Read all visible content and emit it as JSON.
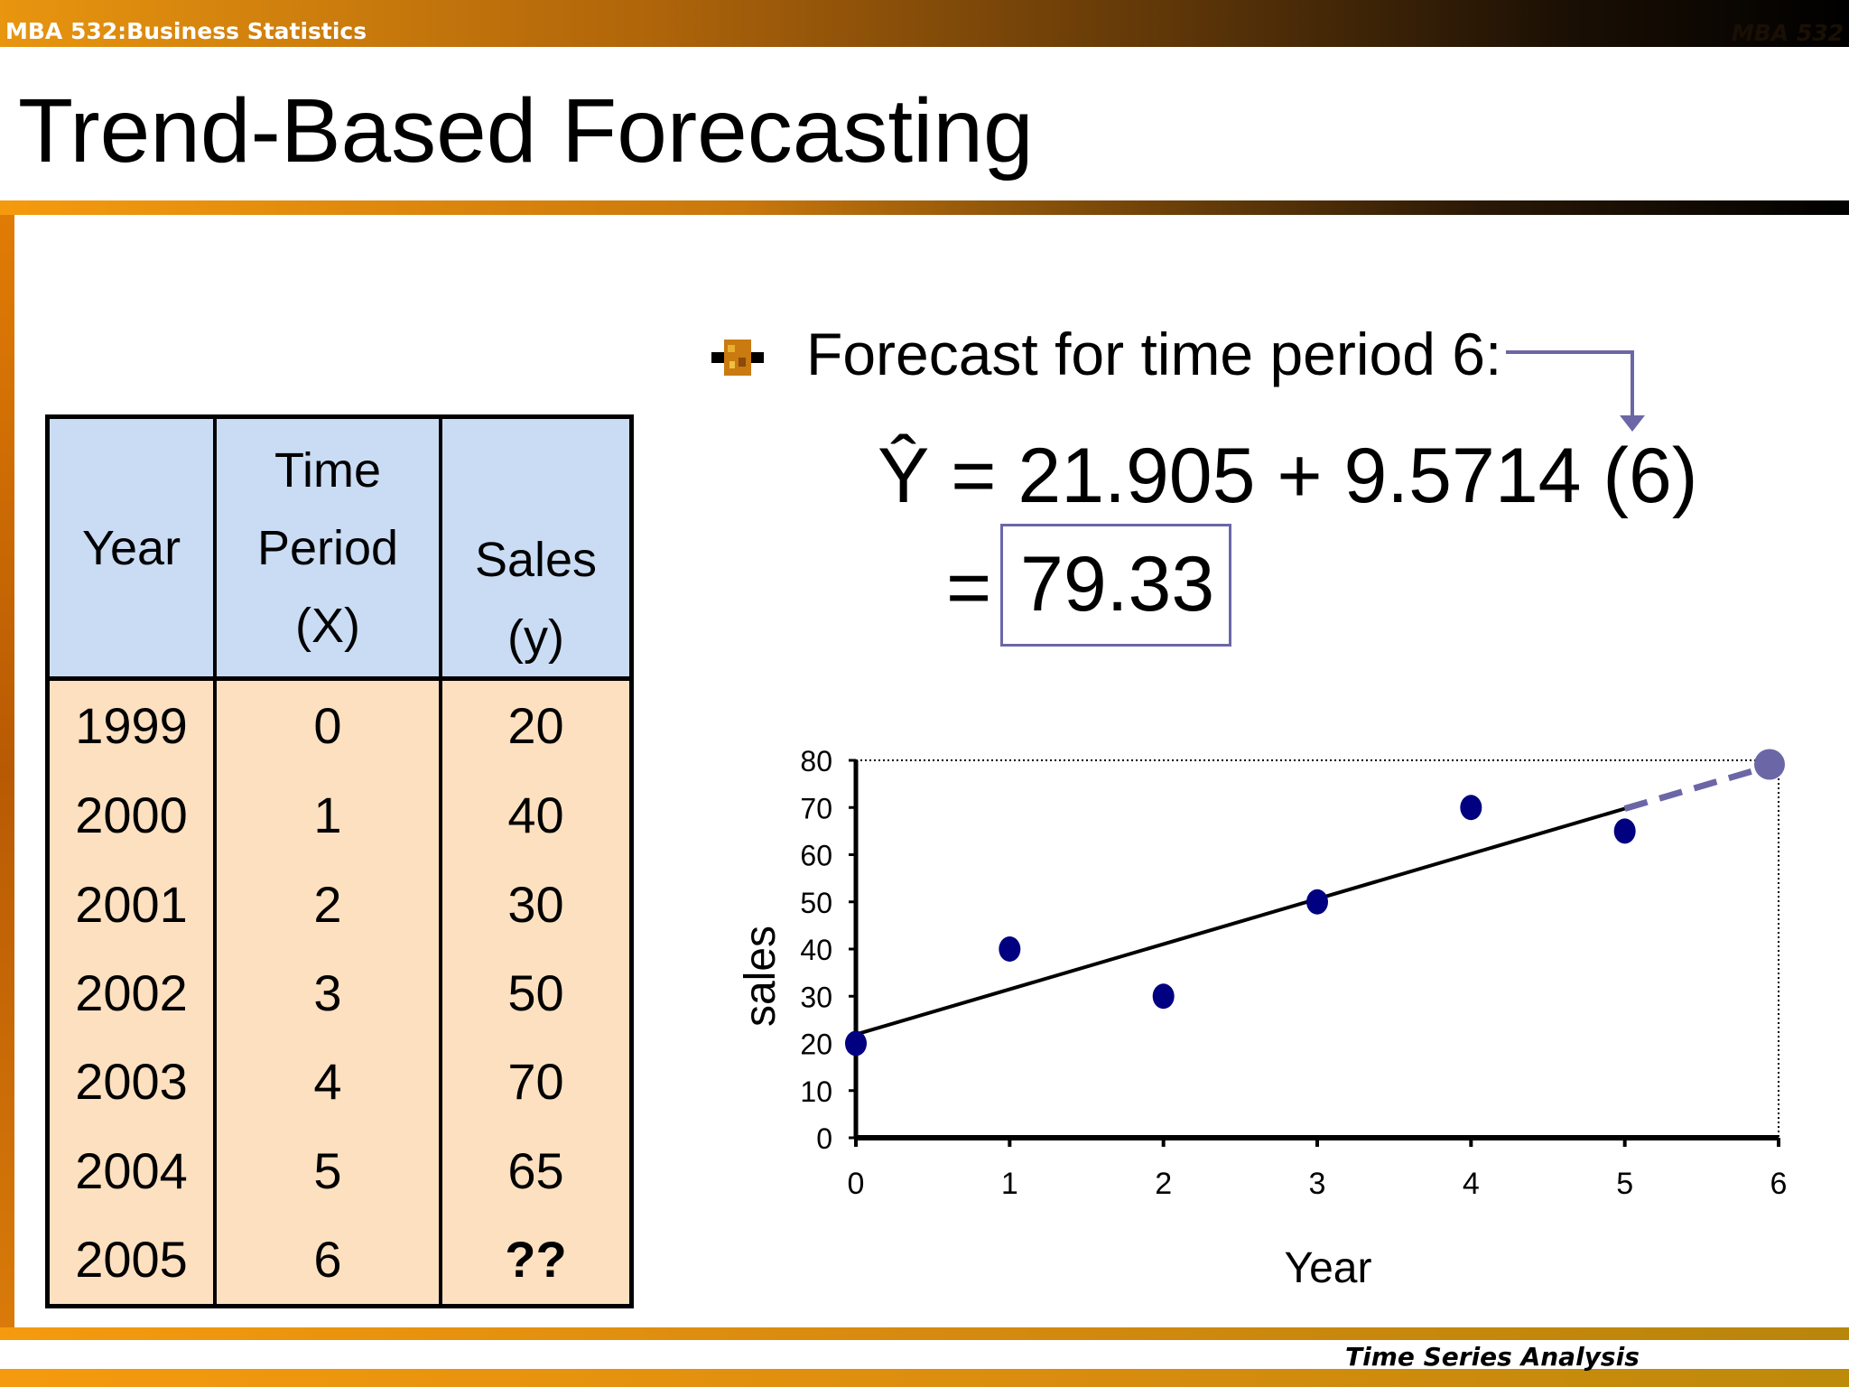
{
  "header": {
    "course": "MBA 532:Business Statistics",
    "course_right": "MBA 532"
  },
  "slide": {
    "title": "Trend-Based Forecasting",
    "footer": "Time Series Analysis"
  },
  "table": {
    "headers": [
      {
        "lines": [
          "Year"
        ]
      },
      {
        "lines": [
          "Time",
          "Period",
          "(X)"
        ]
      },
      {
        "lines": [
          "Sales",
          "(y)"
        ]
      }
    ],
    "rows": [
      [
        "1999",
        "0",
        "20"
      ],
      [
        "2000",
        "1",
        "40"
      ],
      [
        "2001",
        "2",
        "30"
      ],
      [
        "2002",
        "3",
        "50"
      ],
      [
        "2003",
        "4",
        "70"
      ],
      [
        "2004",
        "5",
        "65"
      ],
      [
        "2005",
        "6",
        "??"
      ]
    ]
  },
  "forecast": {
    "bullet_text": "Forecast for time period 6:",
    "equation_lhs": "Ŷ",
    "equation_rhs": "= 21.905 + 9.5714 (6)",
    "equals": "=",
    "result": "79.33",
    "accent_color": "#6b67a6"
  },
  "chart_data": {
    "type": "scatter",
    "xlabel": "Year",
    "ylabel": "sales",
    "x_ticks": [
      "0",
      "1",
      "2",
      "3",
      "4",
      "5",
      "6"
    ],
    "y_ticks": [
      "0",
      "10",
      "20",
      "30",
      "40",
      "50",
      "60",
      "70",
      "80"
    ],
    "xlim": [
      0,
      6
    ],
    "ylim": [
      0,
      80
    ],
    "points": [
      {
        "x": 0,
        "y": 20
      },
      {
        "x": 1,
        "y": 40
      },
      {
        "x": 2,
        "y": 30
      },
      {
        "x": 3,
        "y": 50
      },
      {
        "x": 4,
        "y": 70
      },
      {
        "x": 5,
        "y": 65
      }
    ],
    "trend_line": {
      "intercept": 21.905,
      "slope": 9.5714,
      "x_start": 0,
      "x_end": 5
    },
    "forecast_point": {
      "x": 6,
      "y": 79.33
    },
    "point_color": "#000080",
    "forecast_color": "#6b67a6"
  }
}
